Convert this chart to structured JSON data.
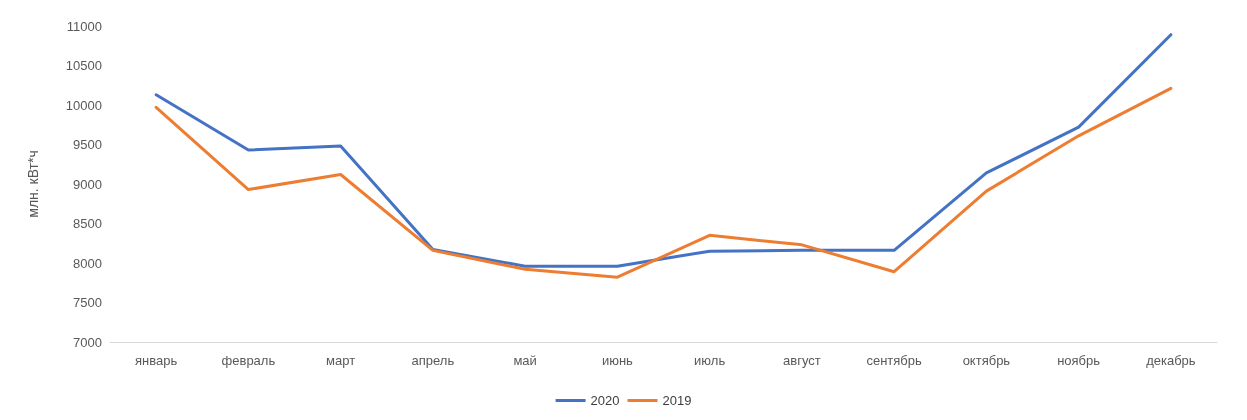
{
  "chart_data": {
    "type": "line",
    "ylabel": "млн. кВт*ч",
    "categories": [
      "январь",
      "февраль",
      "март",
      "апрель",
      "май",
      "июнь",
      "июль",
      "август",
      "сентябрь",
      "октябрь",
      "ноябрь",
      "декабрь"
    ],
    "series": [
      {
        "name": "2020",
        "color": "#4472c4",
        "values": [
          10130,
          9430,
          9480,
          8170,
          7960,
          7960,
          8150,
          8160,
          8160,
          9140,
          9720,
          10890
        ]
      },
      {
        "name": "2019",
        "color": "#ed7d31",
        "values": [
          9970,
          8930,
          9120,
          8160,
          7920,
          7820,
          8350,
          8230,
          7890,
          8910,
          9610,
          10210
        ]
      }
    ],
    "ylim": [
      7000,
      11000
    ],
    "yticks": [
      7000,
      7500,
      8000,
      8500,
      9000,
      9500,
      10000,
      10500,
      11000
    ],
    "grid": false,
    "legend": "bottom",
    "marker": "none",
    "line_style": "solid"
  }
}
